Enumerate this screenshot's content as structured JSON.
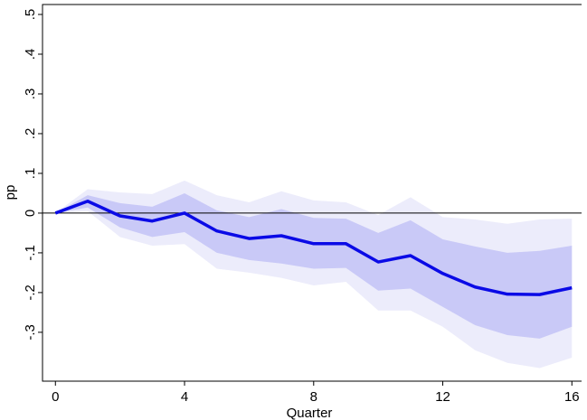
{
  "chart_data": {
    "type": "line",
    "x": [
      0,
      1,
      2,
      3,
      4,
      5,
      6,
      7,
      8,
      9,
      10,
      11,
      12,
      13,
      14,
      15,
      16
    ],
    "x_label": "Quarter",
    "y_label": "pp",
    "series": [
      {
        "color": "#0a0ae6",
        "values": [
          0,
          0.03,
          -0.007,
          -0.02,
          0,
          -0.045,
          -0.064,
          -0.057,
          -0.077,
          -0.077,
          -0.123,
          -0.107,
          -0.152,
          -0.186,
          -0.204,
          -0.205,
          -0.188
        ]
      }
    ],
    "bands": [
      {
        "color": "#ececfb",
        "upper": [
          0,
          0.06,
          0.052,
          0.048,
          0.082,
          0.045,
          0.027,
          0.055,
          0.032,
          0.027,
          -0.005,
          0.04,
          -0.01,
          -0.016,
          -0.027,
          -0.016,
          -0.014
        ],
        "lower": [
          0,
          0.005,
          -0.06,
          -0.082,
          -0.078,
          -0.14,
          -0.15,
          -0.163,
          -0.182,
          -0.173,
          -0.245,
          -0.245,
          -0.286,
          -0.345,
          -0.377,
          -0.39,
          -0.364
        ]
      },
      {
        "color": "#c9c9f7",
        "upper": [
          0,
          0.045,
          0.025,
          0.016,
          0.05,
          0.007,
          -0.01,
          0.01,
          -0.012,
          -0.014,
          -0.05,
          -0.018,
          -0.066,
          -0.084,
          -0.1,
          -0.095,
          -0.082
        ],
        "lower": [
          0,
          0.014,
          -0.036,
          -0.06,
          -0.048,
          -0.1,
          -0.118,
          -0.127,
          -0.14,
          -0.138,
          -0.195,
          -0.19,
          -0.236,
          -0.282,
          -0.307,
          -0.316,
          -0.286
        ]
      }
    ],
    "reference_line": 0,
    "xlim": [
      -0.4,
      16.3
    ],
    "ylim": [
      -0.423,
      0.525
    ],
    "xticks": [
      0,
      4,
      8,
      12,
      16
    ],
    "yticks": [
      {
        "value": -0.3,
        "label": "-.3"
      },
      {
        "value": -0.2,
        "label": "-.2"
      },
      {
        "value": -0.1,
        "label": "-.1"
      },
      0,
      {
        "value": 0.1,
        "label": ".1"
      },
      {
        "value": 0.2,
        "label": ".2"
      },
      {
        "value": 0.3,
        "label": ".3"
      },
      {
        "value": 0.4,
        "label": ".4"
      },
      {
        "value": 0.5,
        "label": ".5"
      }
    ]
  }
}
